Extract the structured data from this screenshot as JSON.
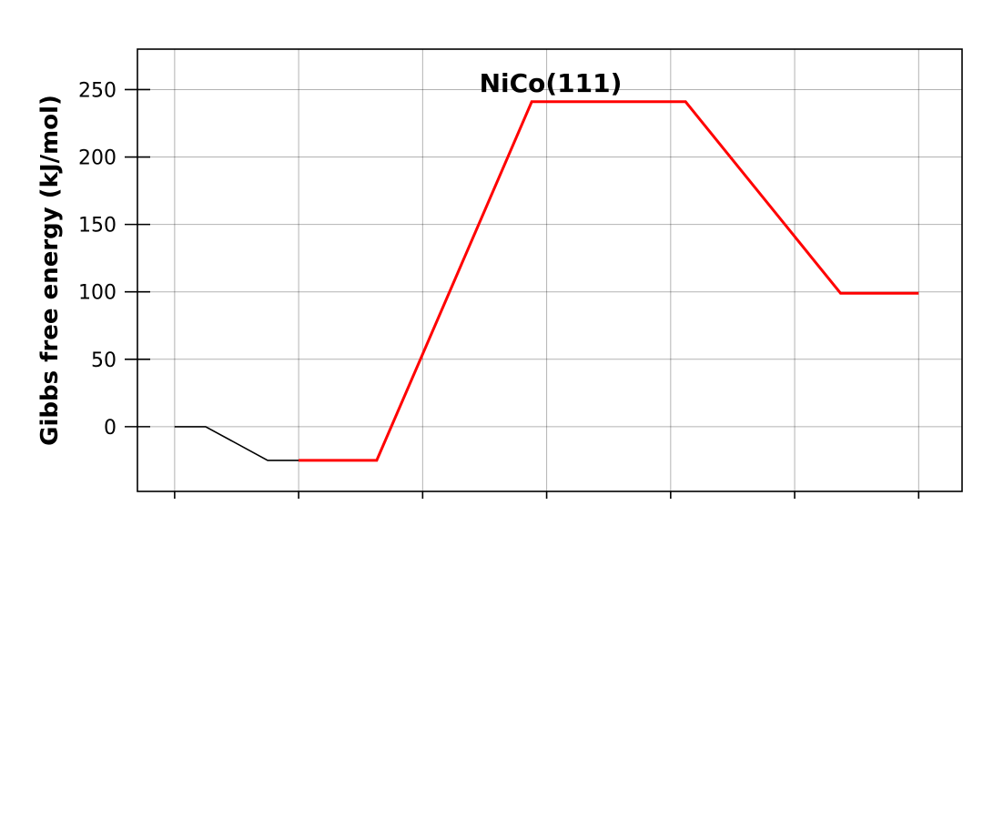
{
  "chart_data": {
    "type": "line",
    "title": "",
    "annotation": "NiCo(111)",
    "xlabel": "",
    "ylabel": "Gibbs free energy (kJ/mol)",
    "xlim": [
      -0.3,
      6.35
    ],
    "ylim": [
      -48,
      280
    ],
    "x_ticks": [
      0,
      1,
      2,
      3,
      4,
      5,
      6
    ],
    "y_ticks": [
      0,
      50,
      100,
      150,
      200,
      250
    ],
    "y_tick_labels": [
      "0",
      "50",
      "100",
      "150",
      "200",
      "250"
    ],
    "grid": true,
    "legend": "none",
    "series": [
      {
        "color": "#000000",
        "points": [
          [
            0,
            0
          ],
          [
            0.25,
            0
          ],
          [
            0.75,
            -25
          ],
          [
            1.0,
            -25
          ]
        ]
      },
      {
        "color": "#ff0000",
        "points": [
          [
            1.0,
            -25
          ],
          [
            1.63,
            -25
          ],
          [
            2.88,
            241
          ],
          [
            4.12,
            241
          ],
          [
            5.37,
            99
          ],
          [
            6.0,
            99
          ]
        ]
      }
    ]
  }
}
